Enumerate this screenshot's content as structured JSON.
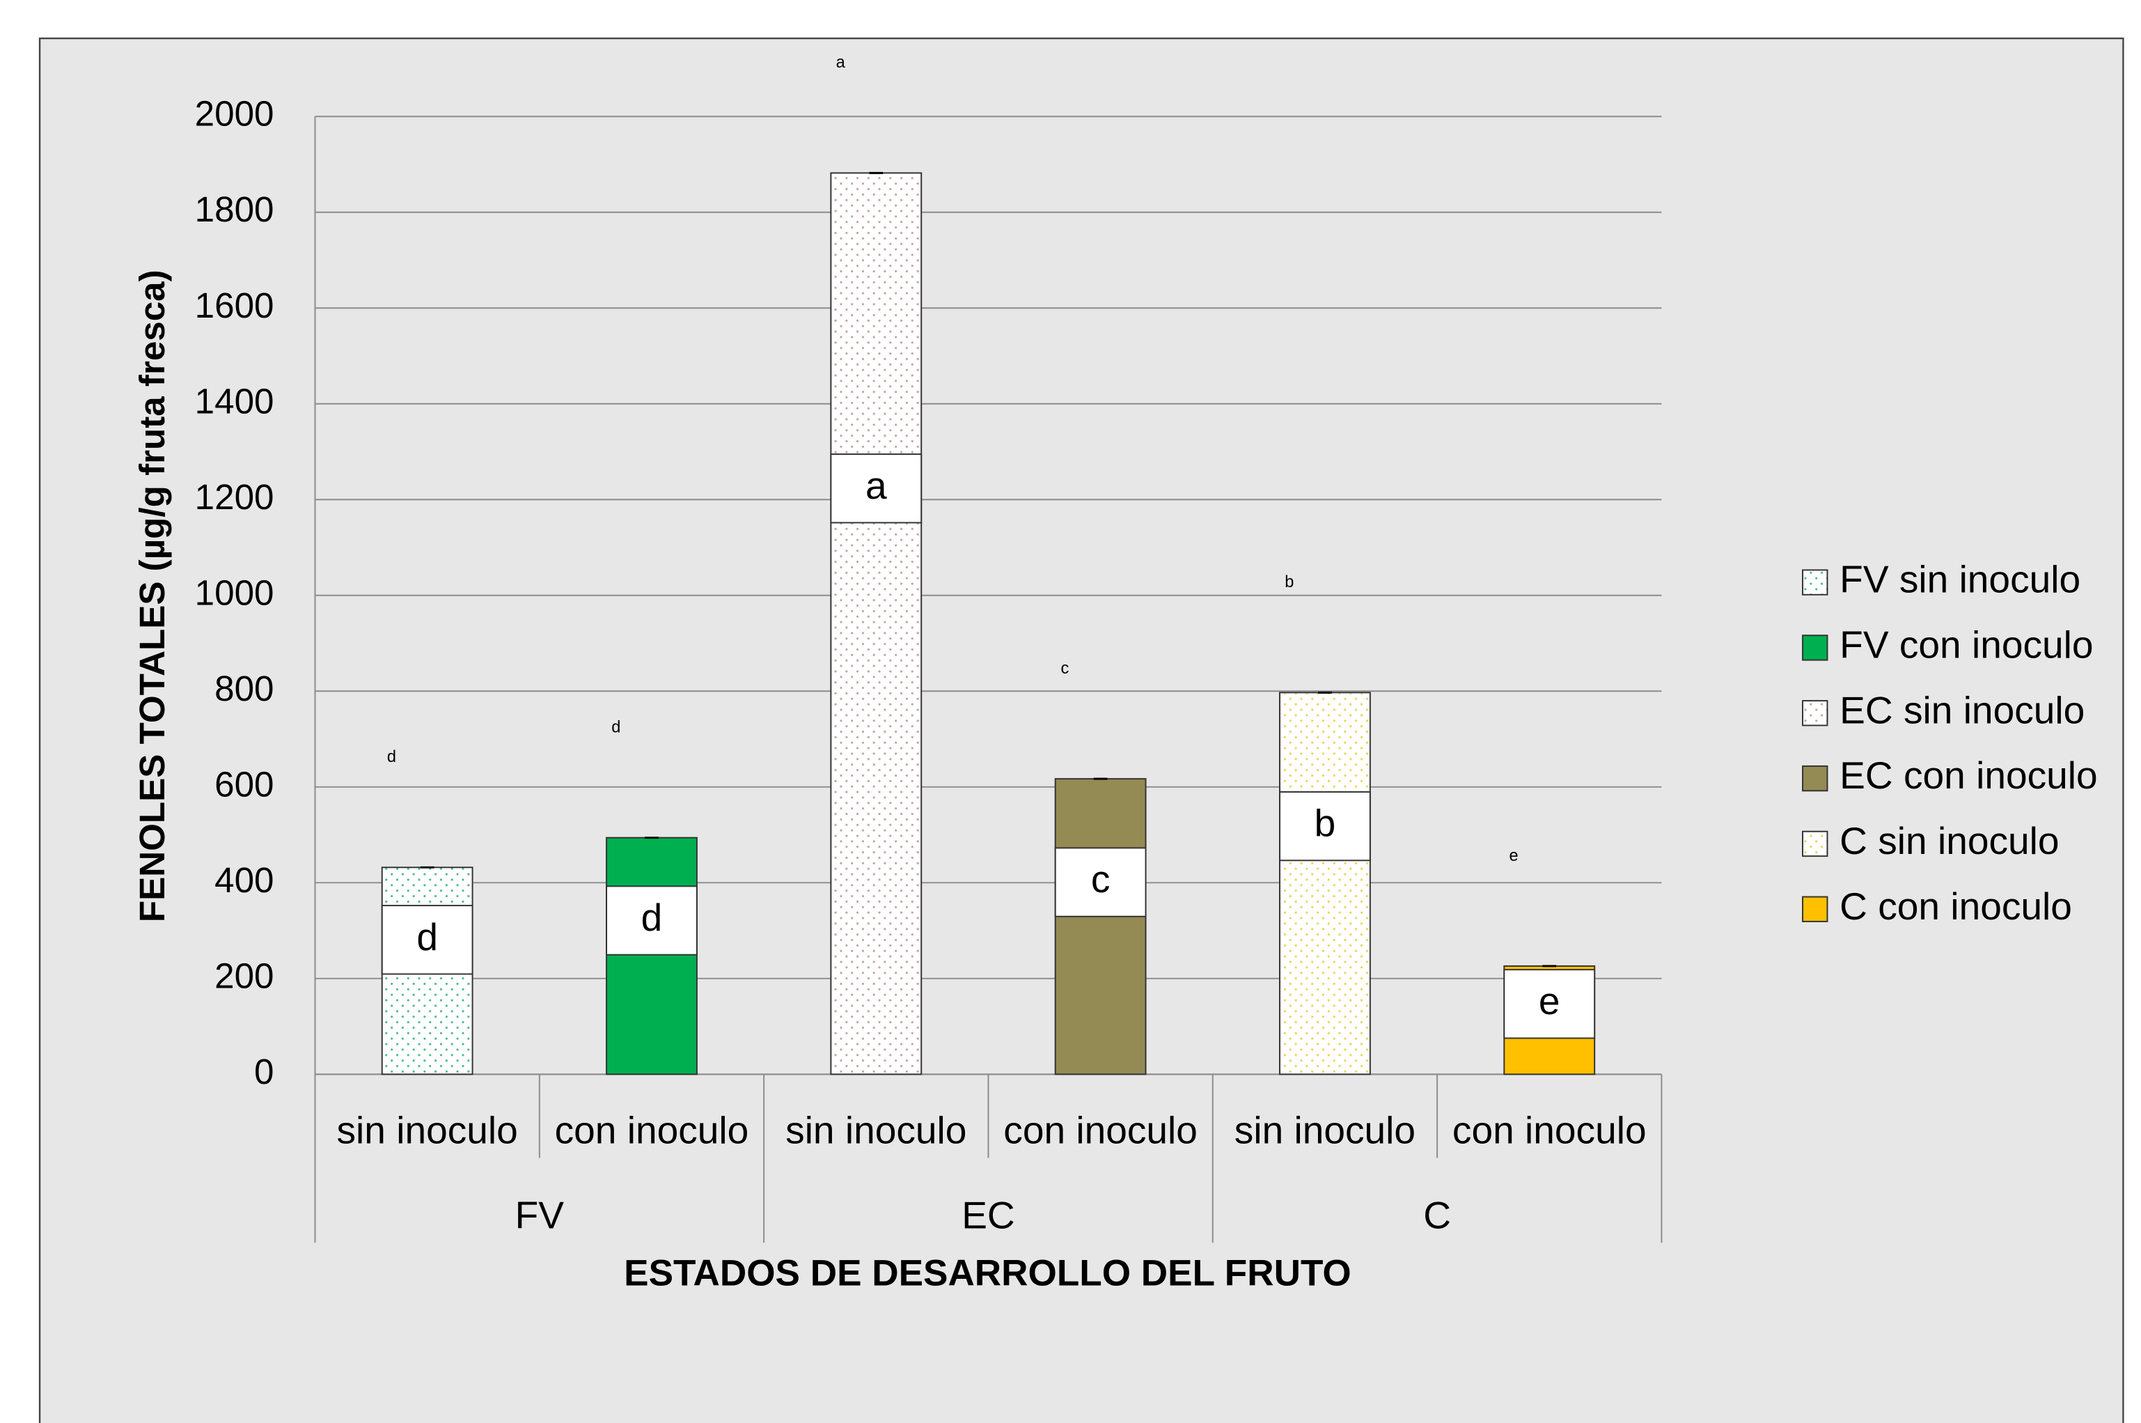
{
  "chart_data": {
    "type": "bar",
    "x_label": "ESTADOS DE DESARROLLO DEL FRUTO",
    "y_label": "FENOLES TOTALES (µg/g fruta fresca)",
    "categories": [
      "sin inoculo",
      "con inoculo",
      "sin inoculo",
      "con inoculo",
      "sin inoculo",
      "con inoculo"
    ],
    "groups": [
      "FV",
      "EC",
      "C"
    ],
    "ylim": [
      0,
      2000
    ],
    "yticks": [
      0,
      200,
      400,
      600,
      800,
      1000,
      1200,
      1400,
      1600,
      1800,
      2000
    ],
    "grid": true,
    "legend": "right",
    "series": [
      {
        "name": "FV sin inoculo",
        "color": "#4fb98a",
        "pattern": "dots",
        "letter": "d",
        "values": [
          432,
          null,
          null,
          null,
          null,
          null
        ]
      },
      {
        "name": "FV con inoculo",
        "color": "#00b050",
        "pattern": "solid",
        "letter": "d",
        "values": [
          null,
          494,
          null,
          null,
          null,
          null
        ]
      },
      {
        "name": "EC sin inoculo",
        "color": "#c8a0a0",
        "pattern": "dots",
        "letter": "a",
        "values": [
          null,
          null,
          1882,
          null,
          null,
          null
        ]
      },
      {
        "name": "EC con inoculo",
        "color": "#948a54",
        "pattern": "solid",
        "letter": "c",
        "values": [
          null,
          null,
          null,
          617,
          null,
          null
        ]
      },
      {
        "name": "C sin inoculo",
        "color": "#f2cf5b",
        "pattern": "dots",
        "letter": "b",
        "values": [
          null,
          null,
          null,
          null,
          797,
          null
        ]
      },
      {
        "name": "C con inoculo",
        "color": "#ffc000",
        "pattern": "solid",
        "letter": "e",
        "values": [
          null,
          null,
          null,
          null,
          null,
          226
        ]
      }
    ]
  }
}
